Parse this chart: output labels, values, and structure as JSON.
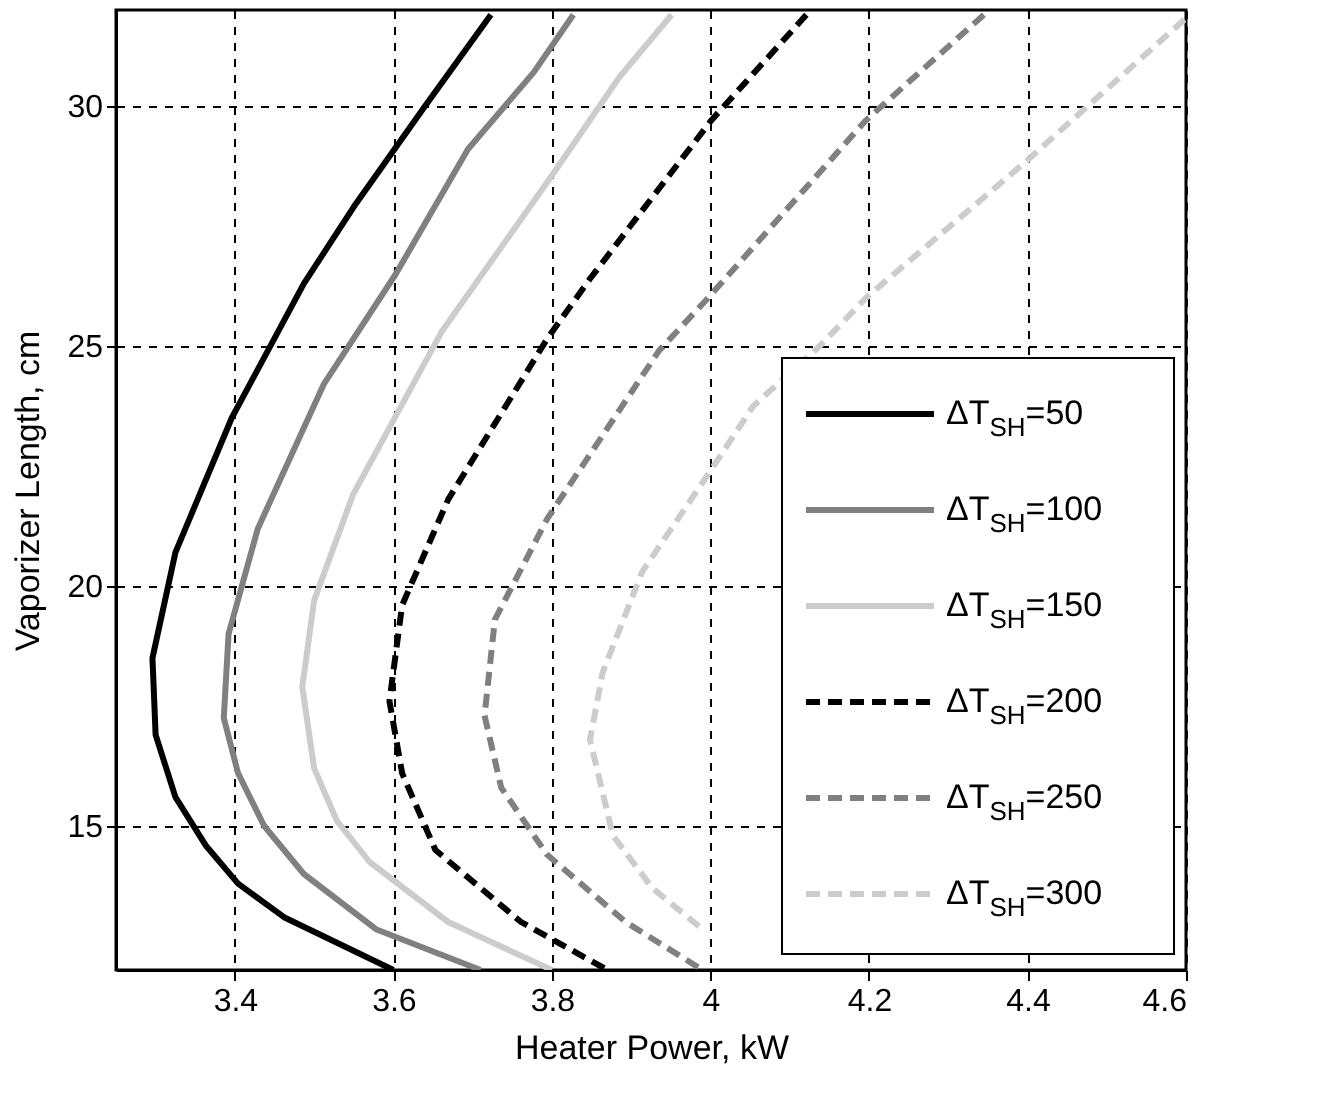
{
  "chart_data": {
    "type": "line",
    "xlabel": "Heater Power, kW",
    "ylabel": "Vaporizer Length, cm",
    "xlim": [
      3.25,
      4.6
    ],
    "xticks": [
      3.4,
      3.6,
      3.8,
      {
        "value": 4,
        "label": "4"
      },
      4.2,
      4.4,
      4.6
    ],
    "ylim": [
      12,
      32
    ],
    "yticks": [
      15,
      20,
      25,
      30
    ],
    "grid": true,
    "legend": "bottom right",
    "marker": "none",
    "series": [
      {
        "name": "ΔT$_{SH}$=50",
        "color": "#000000",
        "line_style": "solid",
        "x": [
          3.723,
          3.64,
          3.55,
          3.487,
          3.396,
          3.325,
          3.296,
          3.3,
          3.325,
          3.363,
          3.404,
          3.462,
          3.6
        ],
        "values": [
          31.9,
          30.0,
          27.9,
          26.3,
          23.5,
          20.7,
          18.5,
          16.9,
          15.6,
          14.6,
          13.8,
          13.1,
          12
        ]
      },
      {
        "name": "ΔT$_{SH}$=100",
        "color": "#808080",
        "line_style": "solid",
        "x": [
          3.827,
          3.777,
          3.694,
          3.603,
          3.512,
          3.429,
          3.392,
          3.386,
          3.404,
          3.437,
          3.487,
          3.578,
          3.71
        ],
        "values": [
          31.9,
          30.7,
          29.1,
          26.5,
          24.2,
          21.2,
          19.0,
          17.25,
          16.1,
          15.0,
          14.0,
          12.85,
          12
        ]
      },
      {
        "name": "ΔT$_{SH}$=150",
        "color": "#cccccc",
        "line_style": "solid",
        "x": [
          3.951,
          3.885,
          3.802,
          3.661,
          3.595,
          3.549,
          3.5,
          3.485,
          3.5,
          3.529,
          3.57,
          3.669,
          3.8
        ],
        "values": [
          31.9,
          30.6,
          28.6,
          25.3,
          23.3,
          21.9,
          19.7,
          17.9,
          16.2,
          15.1,
          14.25,
          13.0,
          12
        ]
      },
      {
        "name": "ΔT$_{SH}$=200",
        "color": "#000000",
        "line_style": "dashed",
        "x": [
          4.121,
          4.001,
          3.848,
          3.794,
          3.669,
          3.611,
          3.595,
          3.611,
          3.653,
          3.761,
          3.87
        ],
        "values": [
          31.9,
          29.7,
          26.4,
          25.15,
          21.8,
          19.6,
          17.6,
          16.1,
          14.5,
          13.0,
          12
        ]
      },
      {
        "name": "ΔT$_{SH}$=250",
        "color": "#808080",
        "line_style": "dashed",
        "x": [
          4.345,
          4.196,
          3.997,
          3.935,
          3.794,
          3.728,
          3.715,
          3.736,
          3.794,
          3.893,
          3.99
        ],
        "values": [
          31.9,
          29.7,
          26.0,
          24.9,
          21.4,
          19.3,
          17.3,
          15.8,
          14.4,
          13.0,
          12
        ]
      },
      {
        "name": "ΔT$_{SH}$=300",
        "color": "#cccccc",
        "line_style": "dashed",
        "x": [
          4.598,
          4.395,
          4.196,
          4.138,
          4.054,
          4.0,
          3.914,
          3.864,
          3.848,
          3.877,
          3.927,
          3.99
        ],
        "values": [
          31.8,
          28.8,
          26.0,
          25.0,
          23.75,
          22.4,
          20.3,
          18.2,
          16.8,
          14.8,
          13.7,
          12.85
        ]
      }
    ]
  }
}
